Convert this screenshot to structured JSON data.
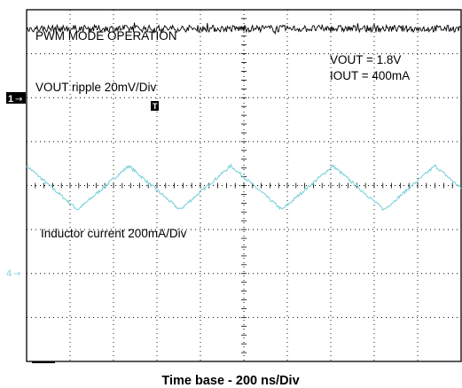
{
  "chart_data": {
    "type": "line",
    "title": "PWM MODE OPERATION",
    "xlabel": "Time base - 200 ns/Div",
    "annotations": {
      "vout_setting": "VOUT = 1.8V",
      "iout_setting": "IOUT = 400mA"
    },
    "grid": true,
    "divisions": {
      "x": 10,
      "y": 8
    },
    "series": [
      {
        "name": "VOUT  ripple 20mV/Div",
        "channel_marker": "1",
        "color": "#000000",
        "level_div": 3.57,
        "pattern": "flat with small random noise (~0.2 div peak-to-peak)"
      },
      {
        "name": "Inductor current 200mA/Div",
        "channel_marker": "4",
        "color": "#7fd3d9",
        "level_div": -0.05,
        "pattern": "triangle, period ≈ 2.35 div (~470 ns), amplitude ≈ 1.0 div peak-to-peak",
        "peaks_div": [
          0.0,
          2.65,
          5.0,
          7.3,
          9.65
        ],
        "troughs_div": [
          1.35,
          3.7,
          6.0,
          8.3
        ]
      }
    ]
  }
}
